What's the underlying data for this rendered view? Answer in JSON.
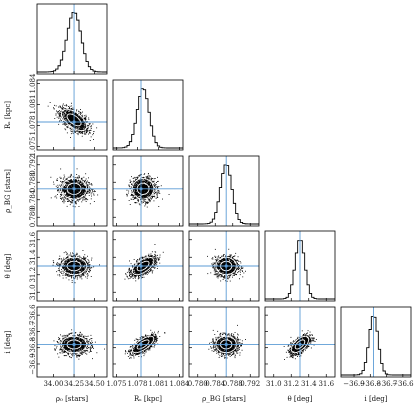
{
  "chart_data": {
    "type": "scatter",
    "colors": {
      "truth": "#5b9bd5",
      "points": "#000000",
      "contours": "#ffffff",
      "histogram": "#000000",
      "frame": "#000000"
    },
    "parameters": [
      {
        "label": "ρ₀ [stars]",
        "range": [
          33.8,
          34.65
        ],
        "truth": 34.25,
        "center": 34.25,
        "sigma": 0.085,
        "bottom_ticks": [
          34.0,
          34.25,
          34.5
        ],
        "bottom_tick_labels": [
          "34.00",
          "34.25",
          "34.50"
        ],
        "left_ticks": [],
        "left_tick_labels": []
      },
      {
        "label": "Rₛ [kpc]",
        "range": [
          1.0745,
          1.0845
        ],
        "truth": 1.0785,
        "center": 1.0788,
        "sigma": 0.00085,
        "bottom_ticks": [
          1.075,
          1.078,
          1.081,
          1.084
        ],
        "bottom_tick_labels": [
          "1.075",
          "1.078",
          "1.081",
          "1.084"
        ],
        "left_ticks": [
          1.075,
          1.078,
          1.081,
          1.084
        ],
        "left_tick_labels": [
          "1.075",
          "1.078",
          "1.081",
          "1.084"
        ]
      },
      {
        "label": "ρ_BG [stars]",
        "range": [
          0.778,
          0.794
        ],
        "truth": 0.7865,
        "center": 0.7865,
        "sigma": 0.0013,
        "bottom_ticks": [
          0.78,
          0.784,
          0.788,
          0.792
        ],
        "bottom_tick_labels": [
          "0.780",
          "0.784",
          "0.788",
          "0.792"
        ],
        "left_ticks": [
          0.78,
          0.784,
          0.788,
          0.792
        ],
        "left_tick_labels": [
          "0.780",
          "0.784",
          "0.788",
          "0.792"
        ]
      },
      {
        "label": "θ [deg]",
        "range": [
          30.9,
          31.7
        ],
        "truth": 31.3,
        "center": 31.3,
        "sigma": 0.055,
        "bottom_ticks": [
          31.0,
          31.2,
          31.4,
          31.6
        ],
        "bottom_tick_labels": [
          "31.0",
          "31.2",
          "31.4",
          "31.6"
        ],
        "left_ticks": [
          31.0,
          31.2,
          31.4,
          31.6
        ],
        "left_tick_labels": [
          "31.0",
          "31.2",
          "31.4",
          "31.6"
        ]
      },
      {
        "label": "i [deg]",
        "range": [
          -36.98,
          -36.55
        ],
        "truth": -36.78,
        "center": -36.78,
        "sigma": 0.028,
        "bottom_ticks": [
          -36.9,
          -36.8,
          -36.7,
          -36.6
        ],
        "bottom_tick_labels": [
          "−36.9",
          "−36.8",
          "−36.7",
          "−36.6"
        ],
        "left_ticks": [
          -36.9,
          -36.8,
          -36.7,
          -36.6
        ],
        "left_tick_labels": [
          "−36.9",
          "−36.8",
          "−36.7",
          "−36.6"
        ]
      }
    ],
    "correlations": [
      [
        1.0,
        -0.6,
        0.0,
        0.0,
        0.0
      ],
      [
        -0.6,
        1.0,
        0.0,
        0.6,
        0.7
      ],
      [
        0.0,
        0.0,
        1.0,
        0.0,
        0.0
      ],
      [
        0.0,
        0.6,
        0.0,
        1.0,
        0.6
      ],
      [
        0.0,
        0.7,
        0.0,
        0.6,
        1.0
      ]
    ]
  }
}
